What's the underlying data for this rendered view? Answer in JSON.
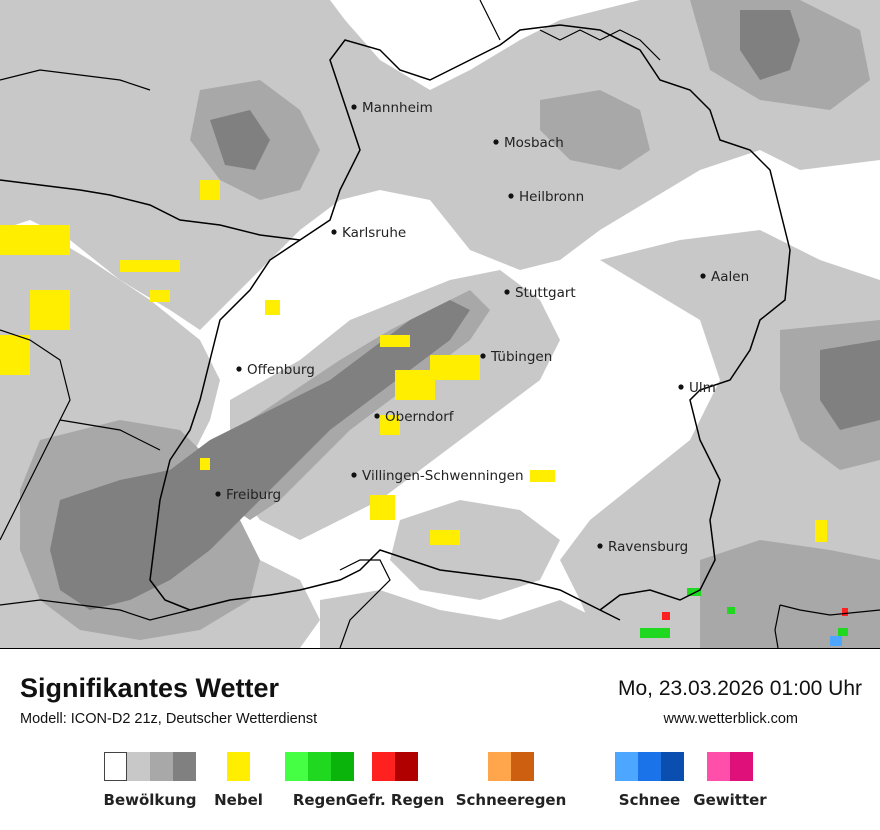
{
  "map": {
    "cities": [
      {
        "name": "Mannheim"
      },
      {
        "name": "Mosbach"
      },
      {
        "name": "Heilbronn"
      },
      {
        "name": "Karlsruhe"
      },
      {
        "name": "Aalen"
      },
      {
        "name": "Stuttgart"
      },
      {
        "name": "Tübingen"
      },
      {
        "name": "Offenburg"
      },
      {
        "name": "Ulm"
      },
      {
        "name": "Oberndorf"
      },
      {
        "name": "Villingen-Schwenningen"
      },
      {
        "name": "Freiburg"
      },
      {
        "name": "Ravensburg"
      }
    ]
  },
  "footer": {
    "title": "Signifikantes Wetter",
    "model": "Modell: ICON-D2 21z, Deutscher Wetterdienst",
    "datetime": "Mo, 23.03.2026 01:00 Uhr",
    "website": "www.wetterblick.com"
  },
  "legend": [
    {
      "label": "Bewölkung",
      "colors": [
        "#ffffff",
        "#c8c8c8",
        "#a8a8a8",
        "#808080"
      ]
    },
    {
      "label": "Nebel",
      "colors": [
        "#ffee00"
      ]
    },
    {
      "label": "Regen",
      "colors": [
        "#44ff44",
        "#1fd81f",
        "#0ab40a"
      ]
    },
    {
      "label": "Gefr. Regen",
      "colors": [
        "#ff2020",
        "#b00000"
      ]
    },
    {
      "label": "Schneeregen",
      "colors": [
        "#ffa64d",
        "#cc6010"
      ]
    },
    {
      "label": "Schnee",
      "colors": [
        "#4da6ff",
        "#1a73e8",
        "#0a4fb0"
      ]
    },
    {
      "label": "Gewitter",
      "colors": [
        "#ff4faa",
        "#e0107a"
      ]
    }
  ]
}
